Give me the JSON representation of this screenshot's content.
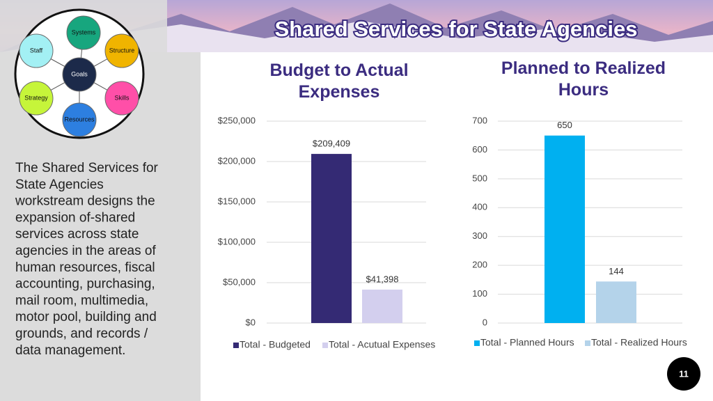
{
  "header": {
    "title": "Shared Services for State Agencies"
  },
  "diagram": {
    "nodes": [
      {
        "label": "Systems",
        "color": "#17a67e"
      },
      {
        "label": "Staff",
        "color": "#a3f0f4"
      },
      {
        "label": "Structure",
        "color": "#f0b400"
      },
      {
        "label": "Goals",
        "color": "#1c2a4a"
      },
      {
        "label": "Strategy",
        "color": "#c6f53a"
      },
      {
        "label": "Skills",
        "color": "#ff4fa8"
      },
      {
        "label": "Resources",
        "color": "#2d7fe0"
      }
    ]
  },
  "description": {
    "lines": [
      "The Shared Services for",
      "State Agencies",
      "workstream designs the",
      "expansion of-shared",
      "services across state",
      "agencies in the areas of",
      "human resources, fiscal",
      "accounting, purchasing,",
      "mail room, multimedia,",
      "motor pool, building and",
      "grounds, and records /",
      "data management."
    ]
  },
  "page_number": "11",
  "chart_data": [
    {
      "type": "bar",
      "title": "Budget to Actual Expenses",
      "series": [
        {
          "name": "Total - Budgeted",
          "color": "#342a74",
          "values": [
            209409
          ],
          "value_labels": [
            "$209,409"
          ]
        },
        {
          "name": "Total - Acutual Expenses",
          "color": "#d3cfee",
          "values": [
            41398
          ],
          "value_labels": [
            "$41,398"
          ]
        }
      ],
      "ylim": [
        0,
        250000
      ],
      "yticks": [
        {
          "value": 0,
          "label": "$0"
        },
        {
          "value": 50000,
          "label": "$50,000"
        },
        {
          "value": 100000,
          "label": "$100,000"
        },
        {
          "value": 150000,
          "label": "$150,000"
        },
        {
          "value": 200000,
          "label": "$200,000"
        },
        {
          "value": 250000,
          "label": "$250,000"
        }
      ],
      "grid": true,
      "legend": "bottom"
    },
    {
      "type": "bar",
      "title": "Planned to Realized Hours",
      "series": [
        {
          "name": "Total - Planned Hours",
          "color": "#00b0f0",
          "values": [
            650
          ]
        },
        {
          "name": "Total - Realized Hours",
          "color": "#b4d3ea",
          "values": [
            144
          ]
        }
      ],
      "ylim": [
        0,
        700
      ],
      "yticks": [
        0,
        100,
        200,
        300,
        400,
        500,
        600,
        700
      ],
      "grid": true,
      "legend": "bottom"
    }
  ]
}
